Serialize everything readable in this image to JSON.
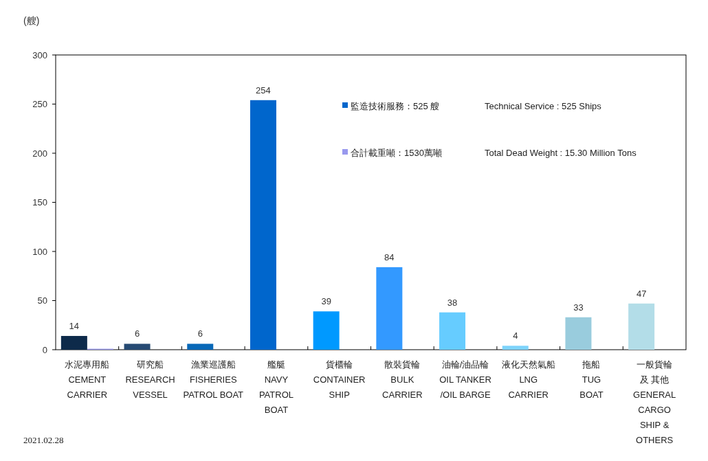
{
  "chart_data": {
    "type": "bar",
    "ylabel": "(艘)",
    "categories": [
      "水泥專用船\nCEMENT\nCARRIER",
      "研究船\nRESEARCH\nVESSEL",
      "漁業巡護船\nFISHERIES\nPATROL BOAT",
      "艦艇\nNAVY\nPATROL\nBOAT",
      "貨櫃輪\nCONTAINER\nSHIP",
      "散裝貨輪\nBULK\nCARRIER",
      "油輪/油品輪\nOIL TANKER\n/OIL BARGE",
      "液化天然氣船\nLNG\nCARRIER",
      "拖船\nTUG\nBOAT",
      "一般貨輪及 其他\nGENERAL\nCARGO\nSHIP &\nOTHERS"
    ],
    "series": [
      {
        "name": "監造技術服務：525 艘",
        "color": "#0066cc",
        "colors": [
          "#0d2a4a",
          "#264a73",
          "#0868b8",
          "#0066cc",
          "#0099ff",
          "#3399ff",
          "#66ccff",
          "#7dd3fc",
          "#99ccdd",
          "#b3dde8"
        ],
        "values": [
          14,
          6,
          6,
          254,
          39,
          84,
          38,
          4,
          33,
          47
        ],
        "value_labels": [
          "14",
          "6",
          "6",
          "254",
          "39",
          "84",
          "38",
          "4",
          "33",
          "47"
        ]
      },
      {
        "name": "合計載重噸：1530萬噸",
        "color": "#9999ee",
        "values": [
          1,
          null,
          null,
          null,
          null,
          null,
          null,
          null,
          null,
          null
        ]
      }
    ],
    "ylim": [
      0,
      300
    ],
    "yticks": [
      0,
      50,
      100,
      150,
      200,
      250,
      300
    ],
    "grid": false,
    "legend": "top right",
    "annotations": [
      "Technical Service : 525 Ships",
      "Total Dead Weight : 15.30 Million Tons",
      "2021.02.28"
    ]
  }
}
